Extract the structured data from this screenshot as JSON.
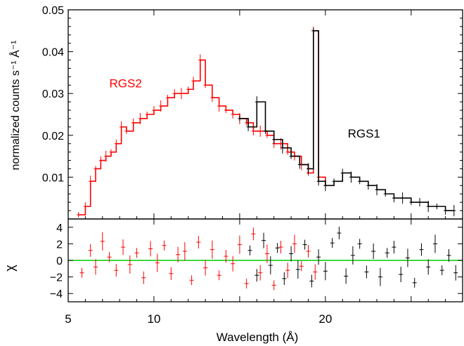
{
  "chart_data": [
    {
      "type": "line",
      "panel": "spectrum",
      "ylabel": "normalized counts s⁻¹ Å⁻¹",
      "xlim": [
        5,
        28
      ],
      "ylim": [
        0,
        0.05
      ],
      "yticks": [
        0.01,
        0.02,
        0.03,
        0.04,
        0.05
      ],
      "ytick_labels": [
        "0.01",
        "0.02",
        "0.03",
        "0.04",
        "0.05"
      ],
      "series": [
        {
          "name": "RGS2",
          "color": "#ff0000",
          "x": [
            5.6,
            6.0,
            6.3,
            6.6,
            6.9,
            7.2,
            7.5,
            7.8,
            8.1,
            8.4,
            8.8,
            9.2,
            9.6,
            10.0,
            10.4,
            10.8,
            11.2,
            11.6,
            12.0,
            12.3,
            12.7,
            13.0,
            13.4,
            13.8,
            14.2,
            14.6,
            15.0,
            15.4,
            15.8,
            16.2,
            16.6,
            17.0,
            17.4,
            17.8,
            18.2,
            18.6,
            19.0,
            19.3,
            19.6,
            20.0
          ],
          "y": [
            0.001,
            0.003,
            0.009,
            0.012,
            0.014,
            0.015,
            0.016,
            0.018,
            0.022,
            0.021,
            0.023,
            0.024,
            0.025,
            0.026,
            0.027,
            0.029,
            0.03,
            0.03,
            0.031,
            0.033,
            0.038,
            0.032,
            0.029,
            0.027,
            0.026,
            0.025,
            0.024,
            0.023,
            0.021,
            0.021,
            0.02,
            0.018,
            0.018,
            0.016,
            0.015,
            0.013,
            0.011,
            0.045,
            0.01,
            0.008
          ]
        },
        {
          "name": "RGS1",
          "color": "#000000",
          "x": [
            15.0,
            15.5,
            16.0,
            16.5,
            17.0,
            17.5,
            18.0,
            18.5,
            19.0,
            19.3,
            19.6,
            20.0,
            20.5,
            21.0,
            21.5,
            22.0,
            22.5,
            23.0,
            23.5,
            24.0,
            24.5,
            25.0,
            25.5,
            26.0,
            26.5,
            27.0,
            27.5
          ],
          "y": [
            0.024,
            0.022,
            0.028,
            0.021,
            0.019,
            0.017,
            0.015,
            0.013,
            0.012,
            0.045,
            0.009,
            0.008,
            0.009,
            0.011,
            0.01,
            0.009,
            0.008,
            0.007,
            0.006,
            0.005,
            0.005,
            0.004,
            0.004,
            0.003,
            0.003,
            0.002,
            0.002
          ]
        }
      ]
    },
    {
      "type": "scatter",
      "panel": "residuals",
      "xlabel": "Wavelength (Å)",
      "ylabel": "χ",
      "xlim": [
        5,
        28
      ],
      "ylim": [
        -5,
        5
      ],
      "xticks": [
        5,
        10,
        15,
        20,
        25
      ],
      "xtick_labels": [
        "5",
        "10",
        "",
        "20",
        ""
      ],
      "yticks": [
        -4,
        -2,
        0,
        2,
        4
      ],
      "ytick_labels": [
        "−4",
        "−2",
        "0",
        "2",
        "4"
      ],
      "zero_line_color": "#00cc00",
      "series": [
        {
          "name": "RGS2",
          "color": "#ff0000",
          "x": [
            5.8,
            6.3,
            6.6,
            7.0,
            7.4,
            7.8,
            8.2,
            8.6,
            9.0,
            9.4,
            9.8,
            10.2,
            10.6,
            11.0,
            11.4,
            11.8,
            12.2,
            12.6,
            13.0,
            13.4,
            13.8,
            14.2,
            14.6,
            15.0,
            15.4,
            15.8,
            16.2,
            16.6,
            17.0,
            17.4,
            17.8,
            18.2,
            18.6,
            19.0,
            19.4
          ],
          "y": [
            -1.5,
            1.2,
            -0.8,
            2.3,
            0.4,
            -1.2,
            1.6,
            -0.5,
            0.9,
            -2.1,
            1.4,
            -0.3,
            1.8,
            -1.6,
            0.7,
            1.1,
            -2.4,
            2.2,
            -0.9,
            1.3,
            -1.8,
            0.5,
            -0.4,
            1.9,
            -2.8,
            3.2,
            -1.5,
            0.8,
            -3.0,
            1.6,
            -1.2,
            2.0,
            -0.7,
            1.1,
            -1.4
          ]
        },
        {
          "name": "RGS1",
          "color": "#000000",
          "x": [
            15.6,
            16.0,
            16.4,
            16.8,
            17.2,
            17.6,
            18.0,
            18.4,
            18.8,
            19.2,
            19.6,
            20.0,
            20.4,
            20.8,
            21.2,
            21.6,
            22.0,
            22.4,
            22.8,
            23.2,
            23.6,
            24.0,
            24.4,
            24.8,
            25.2,
            25.6,
            26.0,
            26.4,
            26.8,
            27.2,
            27.6
          ],
          "y": [
            1.2,
            -1.8,
            2.4,
            -0.6,
            1.5,
            -2.2,
            0.8,
            -1.1,
            1.9,
            -2.5,
            0.4,
            -1.3,
            2.1,
            3.3,
            -1.9,
            0.6,
            2.0,
            -1.4,
            1.1,
            -2.0,
            0.9,
            1.6,
            -1.7,
            0.3,
            -2.7,
            1.3,
            -0.8,
            2.0,
            -1.2,
            0.6,
            -1.5
          ]
        }
      ]
    }
  ],
  "annotations": [
    {
      "text": "RGS2",
      "color": "#ff0000",
      "x": 7.4,
      "y": 0.0315
    },
    {
      "text": "RGS1",
      "color": "#000000",
      "x": 21.3,
      "y": 0.0195
    }
  ]
}
